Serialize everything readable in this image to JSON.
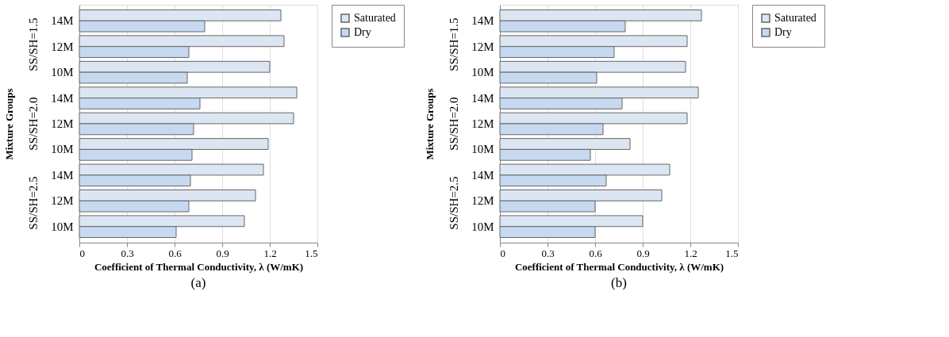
{
  "chart_data": [
    {
      "type": "bar",
      "orientation": "horizontal",
      "title": "(a)",
      "xlabel": "Coefficient of Thermal Conductivity, λ (W/mK)",
      "ylabel": "Mixture Groups",
      "categories": [
        "14M",
        "12M",
        "10M",
        "14M",
        "12M",
        "10M",
        "14M",
        "12M",
        "10M"
      ],
      "series": [
        {
          "name": "Saturated",
          "color": "#dce6f2",
          "values": [
            1.27,
            1.29,
            1.2,
            1.37,
            1.35,
            1.19,
            1.16,
            1.11,
            1.04
          ]
        },
        {
          "name": "Dry",
          "color": "#c6d9f1",
          "values": [
            0.79,
            0.69,
            0.68,
            0.76,
            0.72,
            0.71,
            0.7,
            0.69,
            0.61
          ]
        }
      ],
      "annotations": [
        "SS/SH=1.5",
        "SS/SH=2.0",
        "SS/SH=2.5"
      ],
      "xlim": [
        0,
        1.5
      ],
      "xticks": [
        0,
        0.3,
        0.6,
        0.9,
        1.2,
        1.5
      ],
      "grid": "x",
      "legend": "right"
    },
    {
      "type": "bar",
      "orientation": "horizontal",
      "title": "(b)",
      "xlabel": "Coefficient of Thermal Conductivity, λ (W/mK)",
      "ylabel": "Mixture Groups",
      "categories": [
        "14M",
        "12M",
        "10M",
        "14M",
        "12M",
        "10M",
        "14M",
        "12M",
        "10M"
      ],
      "series": [
        {
          "name": "Saturated",
          "color": "#dce6f2",
          "values": [
            1.27,
            1.18,
            1.17,
            1.25,
            1.18,
            0.82,
            1.07,
            1.02,
            0.9
          ]
        },
        {
          "name": "Dry",
          "color": "#c6d9f1",
          "values": [
            0.79,
            0.72,
            0.61,
            0.77,
            0.65,
            0.57,
            0.67,
            0.6,
            0.6
          ]
        }
      ],
      "annotations": [
        "SS/SH=1.5",
        "SS/SH=2.0",
        "SS/SH=2.5"
      ],
      "xlim": [
        0,
        1.5
      ],
      "xticks": [
        0,
        0.3,
        0.6,
        0.9,
        1.2,
        1.5
      ],
      "grid": "x",
      "legend": "right"
    }
  ]
}
